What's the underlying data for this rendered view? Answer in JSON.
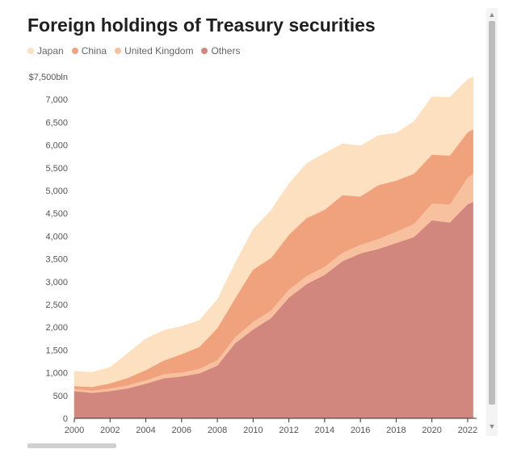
{
  "title": "Foreign holdings of Treasury securities",
  "legend": [
    {
      "label": "Japan",
      "color": "#fde0c0",
      "icon": "dot-icon"
    },
    {
      "label": "China",
      "color": "#f0a27c",
      "icon": "dot-icon"
    },
    {
      "label": "United Kingdom",
      "color": "#f7c1a0",
      "icon": "dot-icon"
    },
    {
      "label": "Others",
      "color": "#d2877e",
      "icon": "dot-icon"
    }
  ],
  "scrollbar": {
    "up_icon": "▲",
    "down_icon": "▼"
  },
  "chart_data": {
    "type": "area",
    "stacked": true,
    "title": "Foreign holdings of Treasury securities",
    "y_unit": "$bln",
    "ylim": [
      0,
      7500
    ],
    "xlim": [
      2000,
      2022.5
    ],
    "y_ticks": [
      0,
      500,
      1000,
      1500,
      2000,
      2500,
      3000,
      3500,
      4000,
      4500,
      5000,
      5500,
      6000,
      6500,
      7000,
      7500
    ],
    "y_tick_labels": [
      "0",
      "500",
      "1,000",
      "1,500",
      "2,000",
      "2,500",
      "3,000",
      "3,500",
      "4,000",
      "4,500",
      "5,000",
      "5,500",
      "6,000",
      "6,500",
      "7,000",
      "$7,500bln"
    ],
    "x_ticks": [
      2000,
      2002,
      2004,
      2006,
      2008,
      2010,
      2012,
      2014,
      2016,
      2018,
      2020,
      2022
    ],
    "x_tick_labels": [
      "2000",
      "2002",
      "2004",
      "2006",
      "2008",
      "2010",
      "2012",
      "2014",
      "2016",
      "2018",
      "2020",
      "2022"
    ],
    "grid": false,
    "legend_position": "top-left",
    "x": [
      2000,
      2001,
      2002,
      2003,
      2004,
      2005,
      2006,
      2007,
      2008,
      2009,
      2010,
      2011,
      2012,
      2013,
      2014,
      2015,
      2016,
      2017,
      2018,
      2019,
      2020,
      2021,
      2022,
      2022.3
    ],
    "series": [
      {
        "name": "Others",
        "color": "#d2877e",
        "values": [
          600,
          560,
          600,
          660,
          760,
          880,
          920,
          990,
          1160,
          1650,
          1950,
          2200,
          2650,
          2950,
          3150,
          3450,
          3620,
          3720,
          3850,
          3980,
          4350,
          4300,
          4700,
          4750
        ]
      },
      {
        "name": "United Kingdom",
        "color": "#f7c1a0",
        "values": [
          50,
          50,
          60,
          70,
          80,
          90,
          90,
          100,
          120,
          140,
          170,
          170,
          180,
          180,
          180,
          190,
          190,
          220,
          250,
          290,
          370,
          400,
          590,
          620
        ]
      },
      {
        "name": "China",
        "color": "#f0a27c",
        "values": [
          60,
          80,
          110,
          160,
          220,
          300,
          400,
          480,
          700,
          850,
          1150,
          1150,
          1200,
          1270,
          1250,
          1260,
          1060,
          1180,
          1120,
          1100,
          1070,
          1070,
          990,
          980
        ]
      },
      {
        "name": "Japan",
        "color": "#fde0c0",
        "values": [
          320,
          320,
          350,
          540,
          690,
          660,
          610,
          580,
          630,
          770,
          880,
          1050,
          1120,
          1200,
          1240,
          1130,
          1110,
          1090,
          1040,
          1150,
          1270,
          1280,
          1160,
          1150
        ]
      }
    ]
  }
}
